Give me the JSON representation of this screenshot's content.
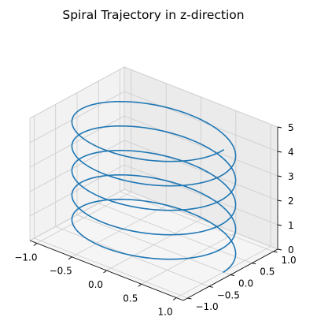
{
  "chart_data": {
    "type": "line3d",
    "title": "Spiral Trajectory in z-direction",
    "x_ticks": [
      "−1.0",
      "−0.5",
      "0.0",
      "0.5",
      "1.0"
    ],
    "x_tick_values": [
      -1.0,
      -0.5,
      0.0,
      0.5,
      1.0
    ],
    "y_ticks": [
      "−1.0",
      "−0.5",
      "0.0",
      "0.5",
      "1.0"
    ],
    "y_tick_values": [
      -1.0,
      -0.5,
      0.0,
      0.5,
      1.0
    ],
    "z_ticks": [
      "0",
      "1",
      "2",
      "3",
      "4",
      "5"
    ],
    "z_tick_values": [
      0,
      1,
      2,
      3,
      4,
      5
    ],
    "xlim": [
      -1.1,
      1.1
    ],
    "ylim": [
      -1.1,
      1.1
    ],
    "zlim": [
      0,
      5
    ],
    "grid": true,
    "series": [
      {
        "color": "#1f77b4",
        "equation": "x = cos(t), y = sin(t), z = t / (2π)",
        "t_range": [
          0,
          31.4159
        ],
        "turns": 5
      }
    ]
  }
}
